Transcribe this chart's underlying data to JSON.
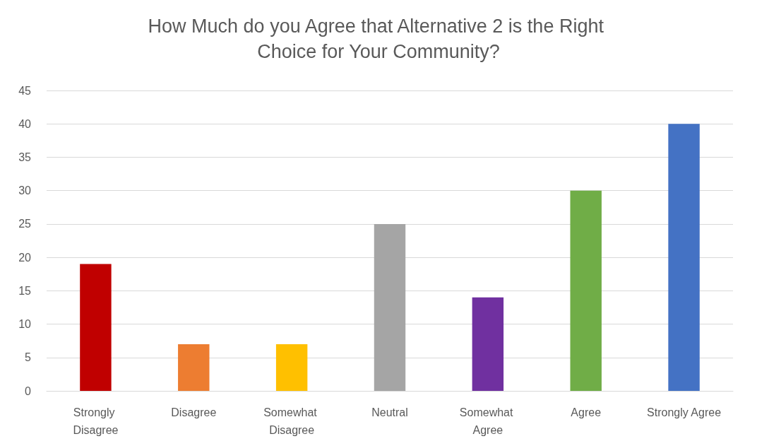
{
  "chart_data": {
    "type": "bar",
    "title": "How Much do you Agree that Alternative 2 is the Right Choice for Your Community?",
    "categories": [
      "Strongly Disagree",
      "Disagree",
      "Somewhat Disagree",
      "Neutral",
      "Somewhat Agree",
      "Agree",
      "Strongly Agree"
    ],
    "values": [
      19,
      7,
      7,
      25,
      14,
      30,
      40
    ],
    "colors": [
      "#c00000",
      "#ed7d31",
      "#ffc000",
      "#a5a5a5",
      "#7030a0",
      "#70ad47",
      "#4472c4"
    ],
    "ylim": [
      0,
      45
    ],
    "yticks": [
      0,
      5,
      10,
      15,
      20,
      25,
      30,
      35,
      40,
      45
    ],
    "grid": "y"
  }
}
